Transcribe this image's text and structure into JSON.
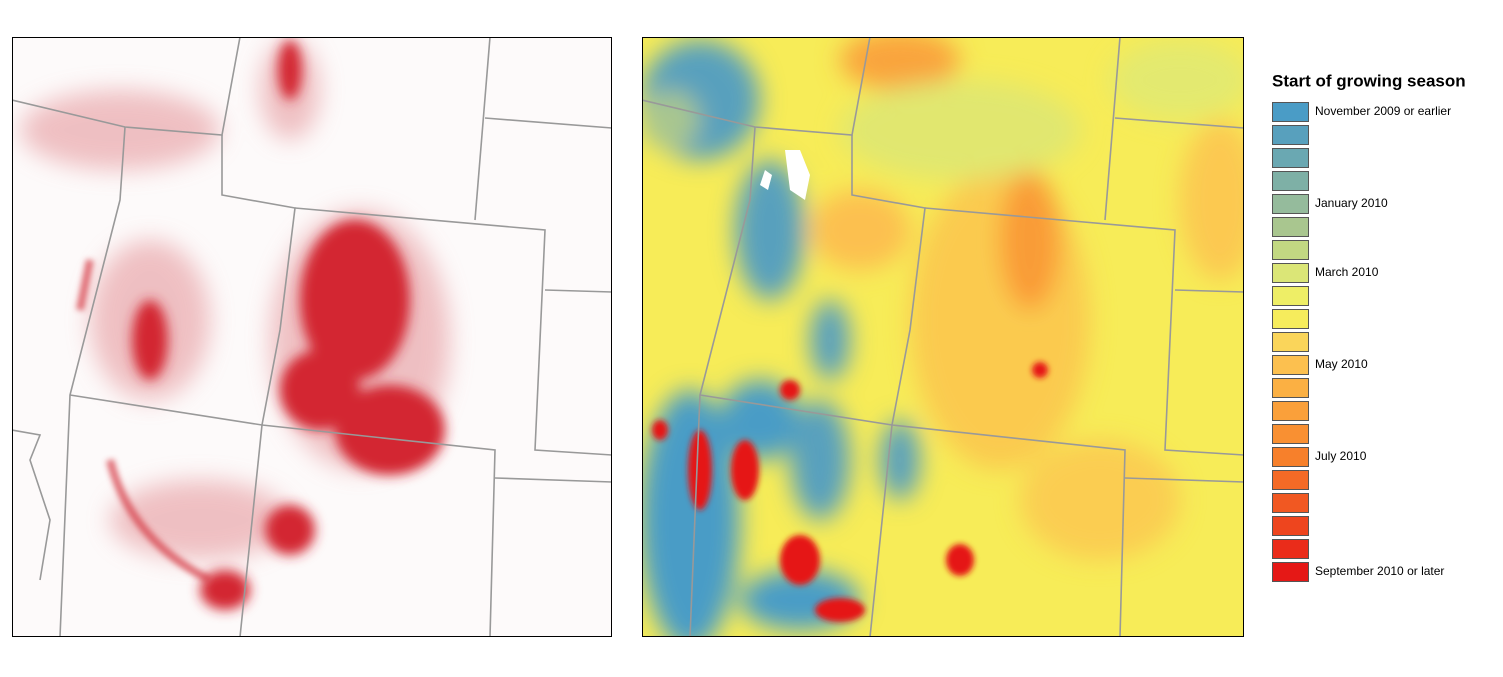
{
  "legend": {
    "title": "Start of growing season",
    "items": [
      {
        "color": "#4a9cc6",
        "label": "November 2009 or earlier"
      },
      {
        "color": "#58a0bd"
      },
      {
        "color": "#6aa8b2"
      },
      {
        "color": "#7eb0a6"
      },
      {
        "color": "#95bb9c",
        "label": "January 2010"
      },
      {
        "color": "#a9c68f"
      },
      {
        "color": "#c2d882"
      },
      {
        "color": "#dbe677",
        "label": "March 2010"
      },
      {
        "color": "#eeee66"
      },
      {
        "color": "#f6ec5c"
      },
      {
        "color": "#fad55a"
      },
      {
        "color": "#fcc04f",
        "label": "May 2010"
      },
      {
        "color": "#fbb043"
      },
      {
        "color": "#faa03a"
      },
      {
        "color": "#f99032"
      },
      {
        "color": "#f7802b",
        "label": "July 2010"
      },
      {
        "color": "#f46a26"
      },
      {
        "color": "#f15822"
      },
      {
        "color": "#ee451e"
      },
      {
        "color": "#ea2c1a"
      },
      {
        "color": "#e51816",
        "label": "September 2010 or later"
      }
    ]
  }
}
